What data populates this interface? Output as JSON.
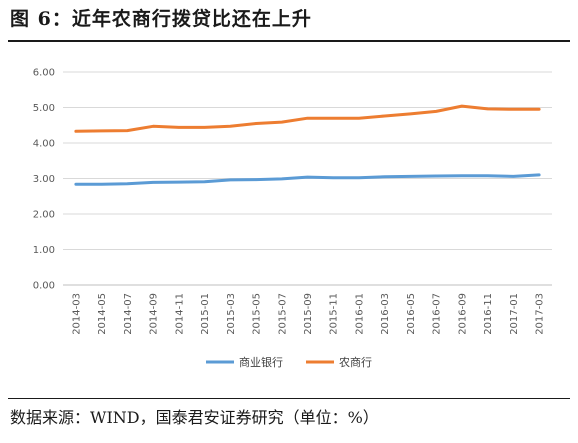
{
  "figure": {
    "title": "图 6：近年农商行拨贷比还在上升",
    "source": "数据来源：WIND，国泰君安证券研究（单位：%）"
  },
  "chart_data": {
    "type": "line",
    "x": [
      "2014-03",
      "2014-05",
      "2014-07",
      "2014-09",
      "2014-11",
      "2015-01",
      "2015-03",
      "2015-05",
      "2015-07",
      "2015-09",
      "2015-11",
      "2016-01",
      "2016-03",
      "2016-05",
      "2016-07",
      "2016-09",
      "2016-11",
      "2017-01",
      "2017-03"
    ],
    "x_tick_labels": [
      "2014-03",
      "2014-05",
      "2014-07",
      "2014-09",
      "2014-11",
      "2015-01",
      "2015-03",
      "2015-05",
      "2015-07",
      "2015-09",
      "2015-11",
      "2016-01",
      "2016-03",
      "2016-05",
      "2016-07",
      "2016-09",
      "2016-11",
      "2017-01",
      "2017-03"
    ],
    "y_tick_labels": [
      "0.00",
      "1.00",
      "2.00",
      "3.00",
      "4.00",
      "5.00",
      "6.00"
    ],
    "ylim": [
      0,
      6
    ],
    "grid": true,
    "legend_position": "bottom",
    "series": [
      {
        "name": "商业银行",
        "color": "#5B9BD5",
        "values": [
          2.84,
          2.84,
          2.85,
          2.89,
          2.9,
          2.91,
          2.96,
          2.97,
          2.99,
          3.04,
          3.02,
          3.02,
          3.05,
          3.06,
          3.07,
          3.08,
          3.08,
          3.06,
          3.1
        ]
      },
      {
        "name": "农商行",
        "color": "#ED7D31",
        "values": [
          4.33,
          4.34,
          4.35,
          4.47,
          4.44,
          4.44,
          4.47,
          4.55,
          4.59,
          4.7,
          4.7,
          4.7,
          4.76,
          4.82,
          4.89,
          5.04,
          4.96,
          4.95,
          4.95
        ]
      }
    ]
  }
}
